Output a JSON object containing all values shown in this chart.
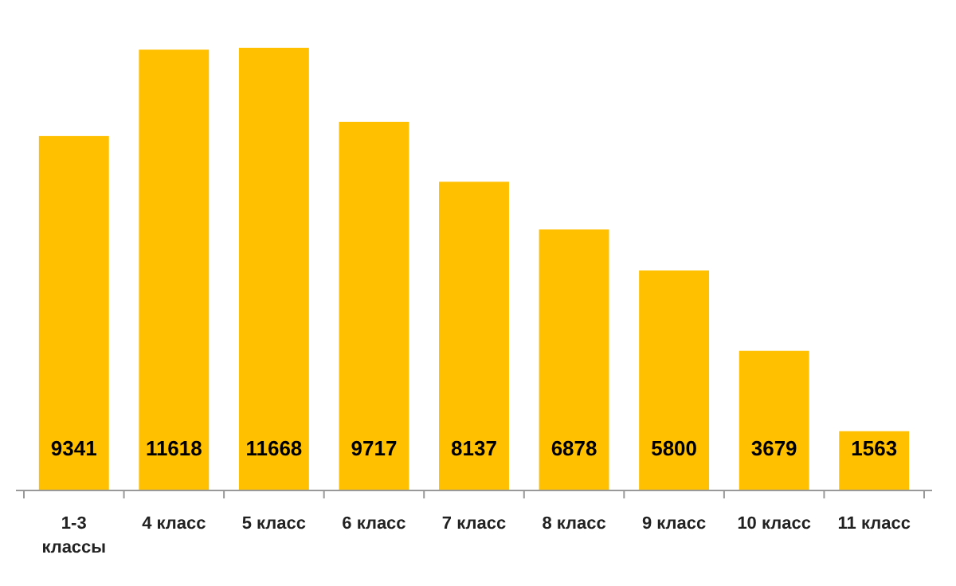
{
  "chart_data": {
    "type": "bar",
    "categories": [
      "1-3 классы",
      "4 класс",
      "5 класс",
      "6 класс",
      "7 класс",
      "8 класс",
      "9 класс",
      "10 класс",
      "11 класс"
    ],
    "values": [
      9341,
      11618,
      11668,
      9717,
      8137,
      6878,
      5800,
      3679,
      1563
    ],
    "color": "#ffc000",
    "data_labels": true
  }
}
